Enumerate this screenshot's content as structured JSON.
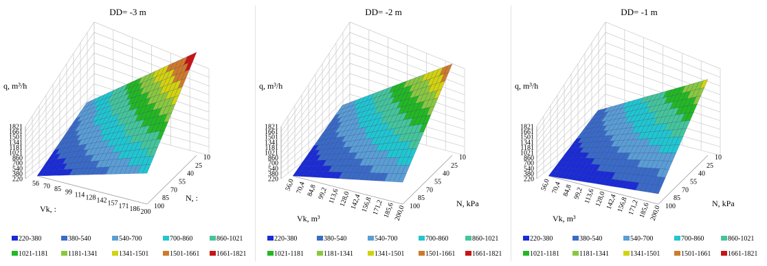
{
  "chart_data": [
    {
      "type": "surface",
      "title": "DD= -3   m",
      "zlabel": "q, m³/h",
      "xlabel": "Vk, :",
      "ylabel": "N, :",
      "z_ticks": [
        "220",
        "380",
        "540",
        "700",
        "860",
        "1021",
        "1181",
        "1341",
        "1501",
        "1661",
        "1821"
      ],
      "x_ticks": [
        "56",
        "70",
        "85",
        "99",
        "114",
        "128",
        "142",
        "157",
        "171",
        "186",
        "200"
      ],
      "y_ticks": [
        "10",
        "25",
        "40",
        "55",
        "70",
        "85",
        "100"
      ],
      "x_range": [
        56,
        200
      ],
      "y_range": [
        10,
        100
      ],
      "z_range": [
        220,
        1821
      ],
      "corner_values": {
        "x_min_y_min": 600,
        "x_min_y_max": 220,
        "x_max_y_min": 1821,
        "x_max_y_max": 700
      },
      "legend": [
        "220-380",
        "380-540",
        "540-700",
        "700-860",
        "860-1021",
        "1021-1181",
        "1181-1341",
        "1341-1501",
        "1501-1661",
        "1661-1821"
      ]
    },
    {
      "type": "surface",
      "title": "DD= -2   m",
      "zlabel": "q, m³/h",
      "xlabel": "Vk, m³",
      "ylabel": "N, kPa",
      "z_ticks": [
        "220",
        "380",
        "540",
        "700",
        "860",
        "1021",
        "1181",
        "1341",
        "1501",
        "1661",
        "1821"
      ],
      "x_ticks": [
        "56,0",
        "70,4",
        "84,8",
        "99,2",
        "113,6",
        "128,0",
        "142,4",
        "156,8",
        "171,2",
        "185,6",
        "200,0"
      ],
      "y_ticks": [
        "10",
        "25",
        "40",
        "55",
        "70",
        "85",
        "100"
      ],
      "x_range": [
        56,
        200
      ],
      "y_range": [
        10,
        100
      ],
      "z_range": [
        220,
        1821
      ],
      "corner_values": {
        "x_min_y_min": 560,
        "x_min_y_max": 220,
        "x_max_y_min": 1640,
        "x_max_y_max": 560
      },
      "legend": [
        "220-380",
        "380-540",
        "540-700",
        "700-860",
        "860-1021",
        "1021-1181",
        "1181-1341",
        "1341-1501",
        "1501-1661",
        "1661-1821"
      ]
    },
    {
      "type": "surface",
      "title": "DD= -1   m",
      "zlabel": "q, m³/h",
      "xlabel": "Vk, m³",
      "ylabel": "N, kPa",
      "z_ticks": [
        "220",
        "380",
        "540",
        "700",
        "860",
        "1021",
        "1181",
        "1341",
        "1501",
        "1661",
        "1821"
      ],
      "x_ticks": [
        "56,0",
        "70,4",
        "84,8",
        "99,2",
        "113,6",
        "128,0",
        "142,4",
        "156,8",
        "171,2",
        "185,6",
        "200,0"
      ],
      "y_ticks": [
        "10",
        "25",
        "40",
        "55",
        "70",
        "85",
        "100"
      ],
      "x_range": [
        56,
        200
      ],
      "y_range": [
        10,
        100
      ],
      "z_range": [
        220,
        1821
      ],
      "corner_values": {
        "x_min_y_min": 480,
        "x_min_y_max": 220,
        "x_max_y_min": 1400,
        "x_max_y_max": 380
      },
      "legend": [
        "220-380",
        "380-540",
        "540-700",
        "700-860",
        "860-1021",
        "1021-1181",
        "1181-1341",
        "1341-1501",
        "1501-1661",
        "1661-1821"
      ]
    }
  ],
  "colors": [
    "#1a2bd6",
    "#3a6bc6",
    "#5a9ed4",
    "#21c6cf",
    "#45c59a",
    "#22b822",
    "#89c83e",
    "#d2d20f",
    "#cf7a2a",
    "#c81414"
  ]
}
